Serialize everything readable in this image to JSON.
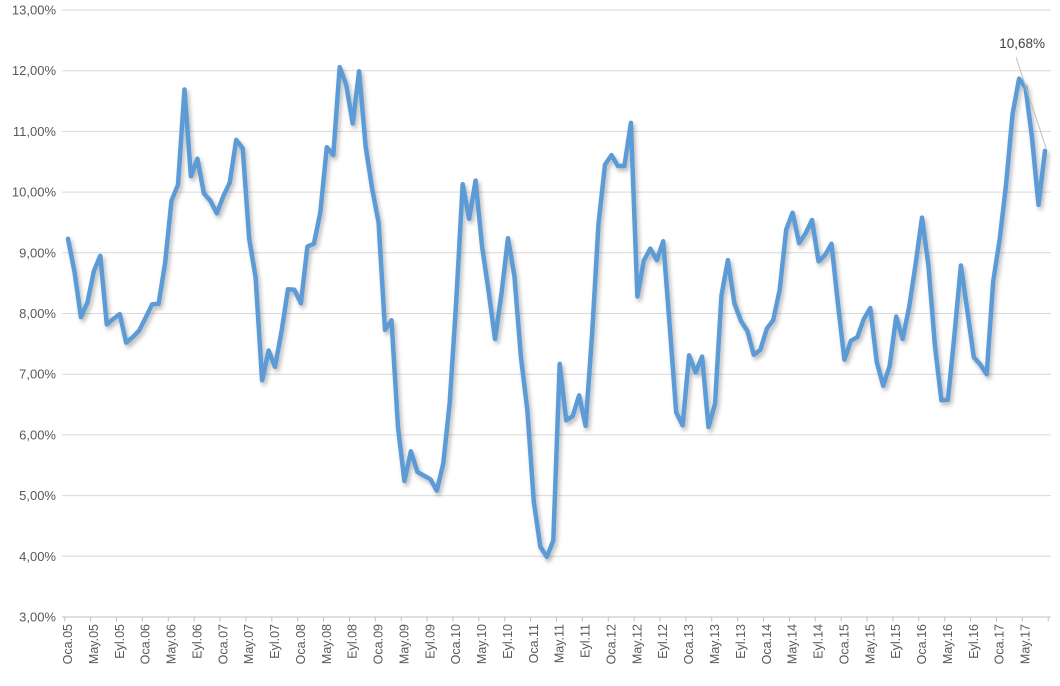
{
  "chart_data": {
    "type": "line",
    "title": "",
    "legend": "none",
    "grid": "horizontal",
    "ylim": [
      3,
      13
    ],
    "y_tick_labels": [
      "3,00%",
      "4,00%",
      "5,00%",
      "6,00%",
      "7,00%",
      "8,00%",
      "9,00%",
      "10,00%",
      "11,00%",
      "12,00%",
      "13,00%"
    ],
    "x_tick_labels": [
      "Oca.05",
      "May.05",
      "Eyl.05",
      "Oca.06",
      "May.06",
      "Eyl.06",
      "Oca.07",
      "May.07",
      "Eyl.07",
      "Oca.08",
      "May.08",
      "Eyl.08",
      "Oca.09",
      "May.09",
      "Eyl.09",
      "Oca.10",
      "May.10",
      "Eyl.10",
      "Oca.11",
      "May.11",
      "Eyl.11",
      "Oca.12",
      "May.12",
      "Eyl.12",
      "Oca.13",
      "May.13",
      "Eyl.13",
      "Oca.14",
      "May.14",
      "Eyl.14",
      "Oca.15",
      "May.15",
      "Eyl.15",
      "Oca.16",
      "May.16",
      "Eyl.16",
      "Oca.17",
      "May.17"
    ],
    "x_frequency": "monthly",
    "x_label_interval": 4,
    "series": [
      {
        "name": "",
        "color": "#5B9BD5",
        "values": [
          9.23,
          8.69,
          7.94,
          8.18,
          8.7,
          8.95,
          7.82,
          7.91,
          7.99,
          7.52,
          7.61,
          7.72,
          7.93,
          8.15,
          8.16,
          8.83,
          9.86,
          10.12,
          11.69,
          10.26,
          10.55,
          9.98,
          9.86,
          9.65,
          9.93,
          10.16,
          10.86,
          10.72,
          9.23,
          8.6,
          6.9,
          7.39,
          7.12,
          7.7,
          8.4,
          8.39,
          8.17,
          9.1,
          9.15,
          9.66,
          10.74,
          10.61,
          12.06,
          11.77,
          11.13,
          11.99,
          10.76,
          10.06,
          9.5,
          7.73,
          7.89,
          6.13,
          5.24,
          5.73,
          5.39,
          5.33,
          5.27,
          5.08,
          5.53,
          6.53,
          8.19,
          10.13,
          9.56,
          10.19,
          9.1,
          8.37,
          7.58,
          8.33,
          9.24,
          8.62,
          7.29,
          6.4,
          4.9,
          4.16,
          3.99,
          4.26,
          7.17,
          6.24,
          6.31,
          6.65,
          6.15,
          7.66,
          9.48,
          10.45,
          10.61,
          10.43,
          10.43,
          11.14,
          8.28,
          8.87,
          9.07,
          8.88,
          9.19,
          7.8,
          6.37,
          6.16,
          7.31,
          7.03,
          7.29,
          6.13,
          6.51,
          8.3,
          8.88,
          8.17,
          7.88,
          7.71,
          7.32,
          7.4,
          7.75,
          7.89,
          8.39,
          9.38,
          9.66,
          9.16,
          9.32,
          9.54,
          8.86,
          8.96,
          9.15,
          8.17,
          7.24,
          7.55,
          7.61,
          7.91,
          8.09,
          7.2,
          6.81,
          7.14,
          7.95,
          7.58,
          8.1,
          8.81,
          9.58,
          8.78,
          7.46,
          6.57,
          6.58,
          7.64,
          8.79,
          8.05,
          7.28,
          7.16,
          7.0,
          8.53,
          9.22,
          10.13,
          11.29,
          11.87,
          11.72,
          10.9,
          9.79,
          10.68
        ]
      }
    ],
    "annotation": {
      "label": "10,68%",
      "applies_to": "last_point"
    },
    "colors": {
      "line": "#5B9BD5",
      "gridline": "#D9D9D9",
      "axis": "#BFBFBF",
      "tick_label": "#595959",
      "annotation_text": "#404040",
      "leader_line": "#BFBFBF"
    }
  }
}
